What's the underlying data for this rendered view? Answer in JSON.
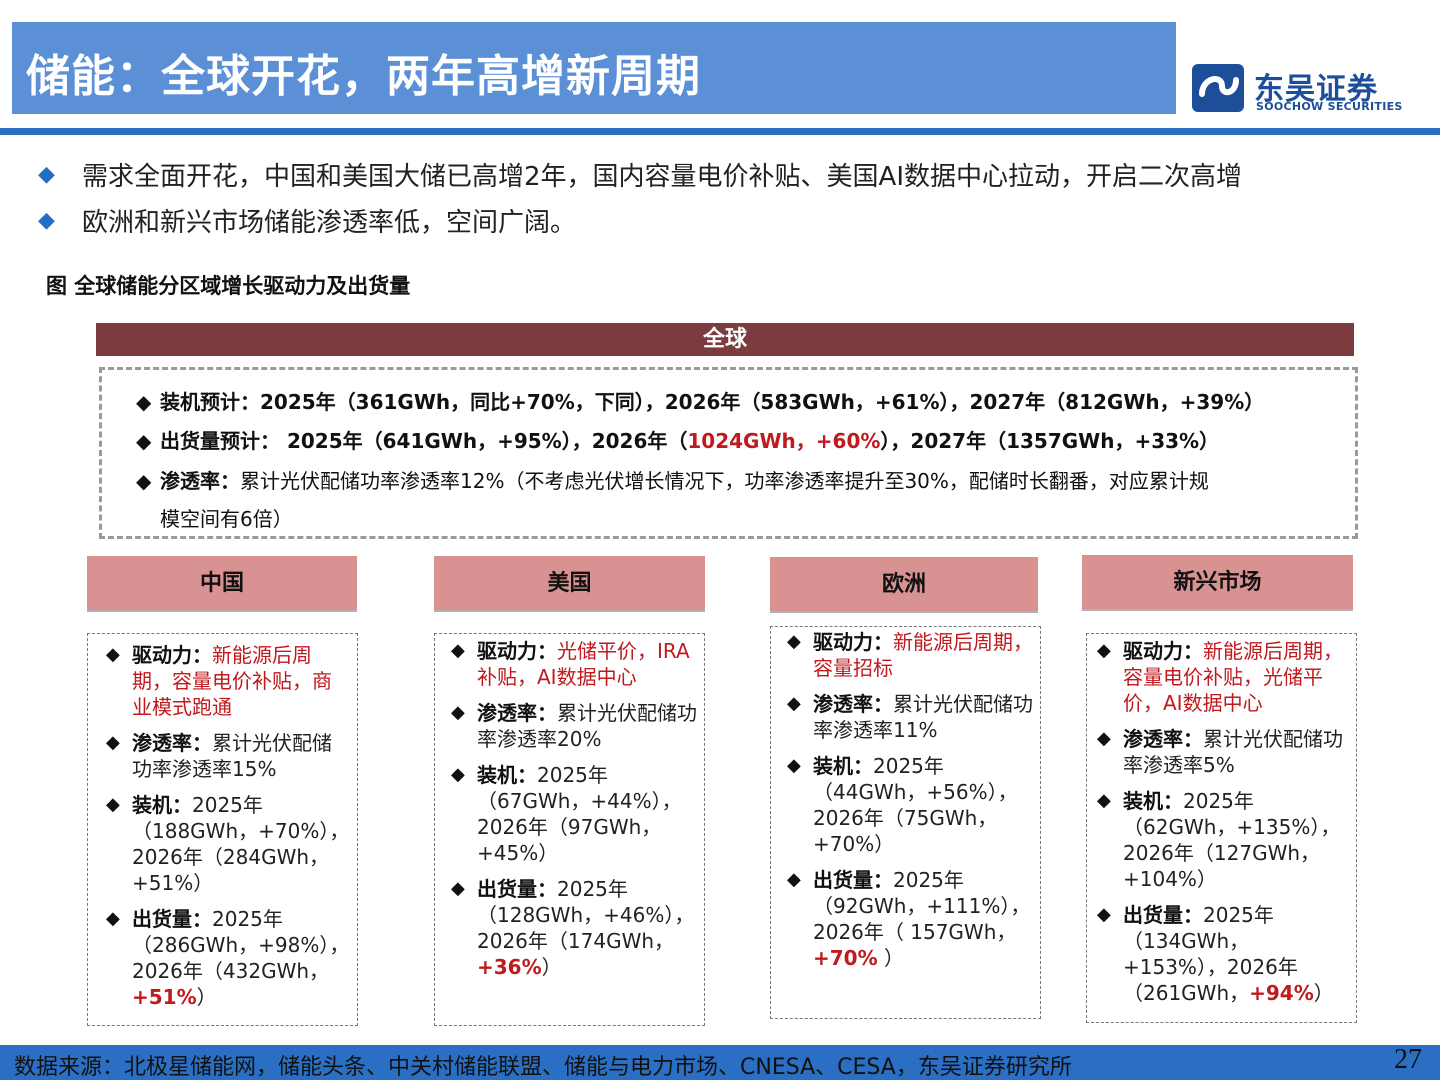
{
  "header": {
    "title": "储能：全球开花，两年高增新周期",
    "logo_cn": "东吴证券",
    "logo_en": "SOOCHOW SECURITIES"
  },
  "bullets": [
    "需求全面开花，中国和美国大储已高增2年，国内容量电价补贴、美国AI数据中心拉动，开启二次高增",
    "欧洲和新兴市场储能渗透率低，空间广阔。"
  ],
  "figure_caption": "图  全球储能分区域增长驱动力及出货量",
  "global": {
    "title": "全球",
    "install_label": "装机预计：",
    "install_text": "2025年（361GWh，同比+70%，下同），2026年（583GWh，+61%），2027年（812GWh，+39%）",
    "ship_label": "出货量预计：",
    "ship_text_a": " 2025年（641GWh，+95%），2026年（",
    "ship_text_red": "1024GWh，+60%",
    "ship_text_b": "），2027年（1357GWh，+33%）",
    "pen_label": "渗透率：",
    "pen_text_1": "累计光伏配储功率渗透率12%（不考虑光伏增长情况下，功率渗透率提升至30%，配储时长翻番，对应累计规",
    "pen_text_2": "模空间有6倍）"
  },
  "regions": {
    "china": {
      "name": "中国",
      "drive_label": "驱动力：",
      "drive": "新能源后周期，容量电价补贴，商业模式跑通",
      "pen_label": "渗透率：",
      "pen": "累计光伏配储功率渗透率15%",
      "install_label": "装机：",
      "install": "2025年（188GWh，+70%），2026年（284GWh，+51%）",
      "ship_label": "出货量：",
      "ship": "2025年（286GWh，+98%），2026年（432GWh，",
      "ship_red": "+51%",
      "ship_end": "）"
    },
    "usa": {
      "name": "美国",
      "drive_label": "驱动力：",
      "drive": "光储平价，IRA补贴，AI数据中心",
      "pen_label": "渗透率：",
      "pen": "累计光伏配储功率渗透率20%",
      "install_label": "装机：",
      "install": "2025年（67GWh，+44%），2026年（97GWh，+45%）",
      "ship_label": "出货量：",
      "ship": "2025年（128GWh，+46%），2026年（174GWh，",
      "ship_red": "+36%",
      "ship_end": "）"
    },
    "europe": {
      "name": "欧洲",
      "drive_label": "驱动力：",
      "drive": "新能源后周期，",
      "drive_2": "容量招标",
      "pen_label": "渗透率：",
      "pen": "累计光伏配储功率渗透率11%",
      "install_label": "装机：",
      "install": "2025年（44GWh，+56%），2026年（75GWh，+70%）",
      "ship_label": "出货量：",
      "ship": "2025年（92GWh，+111%），2026年（ 157GWh，",
      "ship_red": "+70%",
      "ship_end": " ）"
    },
    "emerging": {
      "name": "新兴市场",
      "drive_label": "驱动力：",
      "drive": "新能源后周期，容量电价补贴，光储平价，AI数据中心",
      "pen_label": "渗透率：",
      "pen": "累计光伏配储功率渗透率5%",
      "install_label": "装机：",
      "install": "2025年（62GWh，+135%），2026年（127GWh，+104%）",
      "ship_label": "出货量：",
      "ship": "2025年（134GWh，+153%），2026年（261GWh，",
      "ship_red": "+94%",
      "ship_end": "）"
    }
  },
  "footer": {
    "source": "数据来源：北极星储能网，储能头条、中关村储能联盟、储能与电力市场、CNESA、CESA，东吴证券研究所",
    "page": "27"
  },
  "colors": {
    "title_bg": "#5b8fd6",
    "rule_blue": "#2a6fc4",
    "global_bar": "#7b3b3f",
    "region_head": "#d99292",
    "highlight_red": "#c0191e"
  },
  "icons": [
    "diamond-bullet-icon",
    "soochow-logo-icon"
  ]
}
